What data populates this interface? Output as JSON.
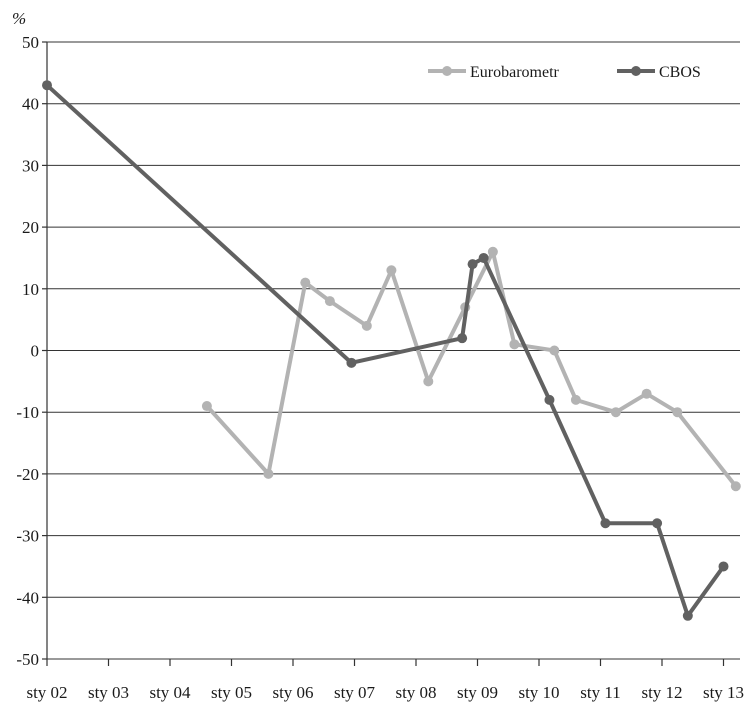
{
  "chart_data": {
    "type": "line",
    "ylabel": "%",
    "ylim": [
      -50,
      50
    ],
    "yticks": [
      50,
      40,
      30,
      20,
      10,
      0,
      -10,
      -20,
      -30,
      -40,
      -50
    ],
    "ytick_labels": [
      "50",
      "40",
      "30",
      "20",
      "10",
      "0",
      "-10",
      "-20",
      "-30",
      "-40",
      "-50"
    ],
    "xlim": [
      2002,
      2013.3
    ],
    "xticks": [
      2002,
      2003,
      2004,
      2005,
      2006,
      2007,
      2008,
      2009,
      2010,
      2011,
      2012,
      2013
    ],
    "xtick_labels": [
      "sty 02",
      "sty 03",
      "sty 04",
      "sty 05",
      "sty 06",
      "sty 07",
      "sty 08",
      "sty 09",
      "sty 10",
      "sty 11",
      "sty 12",
      "sty 13"
    ],
    "grid": "horizontal",
    "legend_position": "top-right",
    "series": [
      {
        "name": "Eurobarometr",
        "color": "#b3b3b3",
        "x": [
          2004.6,
          2005.6,
          2006.2,
          2006.6,
          2007.2,
          2007.6,
          2008.2,
          2008.8,
          2009.25,
          2009.6,
          2010.25,
          2010.6,
          2011.25,
          2011.75,
          2012.25,
          2013.2
        ],
        "y": [
          -9,
          -20,
          11,
          8,
          4,
          13,
          -5,
          7,
          16,
          1,
          0,
          -8,
          -10,
          -7,
          -10,
          -22
        ]
      },
      {
        "name": "CBOS",
        "color": "#616161",
        "x": [
          2002,
          2006.95,
          2008.75,
          2008.92,
          2009.1,
          2010.17,
          2011.08,
          2011.92,
          2012.42,
          2013.0
        ],
        "y": [
          43,
          -2,
          2,
          14,
          15,
          -8,
          -28,
          -28,
          -43,
          -35
        ]
      }
    ]
  }
}
